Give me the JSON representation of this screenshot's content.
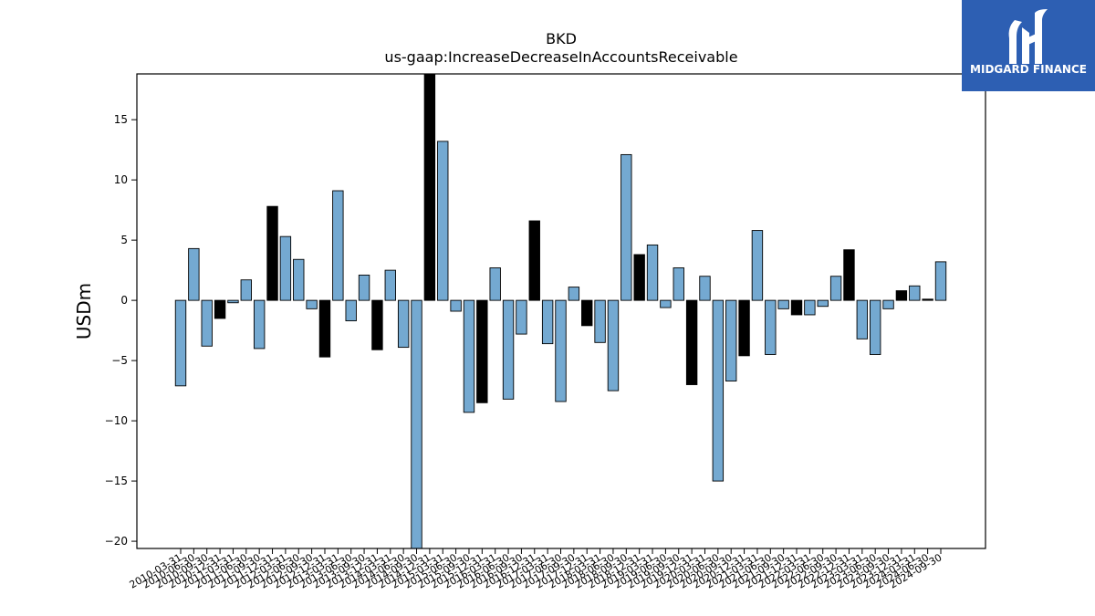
{
  "brand": {
    "name": "MIDGARD FINANCE",
    "background_color": "#2d5fb3",
    "logo_icon": "midgard-m-icon"
  },
  "chart_data": {
    "type": "bar",
    "title": "BKD",
    "subtitle": "us-gaap:IncreaseDecreaseInAccountsReceivable",
    "xlabel": "",
    "ylabel": "USDm",
    "ylim": [
      -20.6,
      18.8
    ],
    "yticks": [
      -20,
      -15,
      -10,
      -5,
      0,
      5,
      10,
      15
    ],
    "grid": false,
    "colors": {
      "default": "#74a9d1",
      "highlight": "#000000",
      "edge": "#000000"
    },
    "categories": [
      "2010-03-31",
      "2010-06-30",
      "2010-09-30",
      "2010-12-31",
      "2011-03-31",
      "2011-06-30",
      "2011-09-30",
      "2011-12-31",
      "2012-03-31",
      "2012-06-30",
      "2012-09-30",
      "2012-12-31",
      "2013-03-31",
      "2013-06-30",
      "2013-09-30",
      "2013-12-31",
      "2014-03-31",
      "2014-06-30",
      "2014-09-30",
      "2014-12-31",
      "2015-03-31",
      "2015-06-30",
      "2015-09-30",
      "2015-12-31",
      "2016-03-31",
      "2016-06-30",
      "2016-09-30",
      "2016-12-31",
      "2017-03-31",
      "2017-06-30",
      "2017-09-30",
      "2017-12-31",
      "2018-03-31",
      "2018-06-30",
      "2018-09-30",
      "2018-12-31",
      "2019-03-31",
      "2019-06-30",
      "2019-09-30",
      "2019-12-31",
      "2020-03-31",
      "2020-06-30",
      "2020-09-30",
      "2020-12-31",
      "2021-03-31",
      "2021-06-30",
      "2021-09-30",
      "2021-12-31",
      "2022-03-31",
      "2022-06-30",
      "2022-09-30",
      "2022-12-31",
      "2023-03-31",
      "2023-06-30",
      "2023-09-30",
      "2023-12-31",
      "2024-03-31",
      "2024-06-30",
      "2024-09-30"
    ],
    "values": [
      -7.1,
      4.3,
      -3.8,
      -1.5,
      -0.2,
      1.7,
      -4.0,
      7.8,
      5.3,
      3.4,
      -0.7,
      -4.7,
      9.1,
      -1.7,
      2.1,
      -4.1,
      2.5,
      -3.9,
      -20.6,
      18.8,
      13.2,
      -0.9,
      -9.3,
      -8.5,
      2.7,
      -8.2,
      -2.8,
      6.6,
      -3.6,
      -8.4,
      1.1,
      -2.1,
      -3.5,
      -7.5,
      12.1,
      3.8,
      4.6,
      -0.6,
      2.7,
      -7.0,
      2.0,
      -15.0,
      -6.7,
      -4.6,
      5.8,
      -4.5,
      -0.7,
      -1.2,
      -1.2,
      -0.5,
      2.0,
      4.2,
      -3.2,
      -4.5,
      -0.7,
      0.8,
      1.2,
      0.1,
      3.2
    ],
    "highlight": [
      false,
      false,
      false,
      true,
      false,
      false,
      false,
      true,
      false,
      false,
      false,
      true,
      false,
      false,
      false,
      true,
      false,
      false,
      false,
      true,
      false,
      false,
      false,
      true,
      false,
      false,
      false,
      true,
      false,
      false,
      false,
      true,
      false,
      false,
      false,
      true,
      false,
      false,
      false,
      true,
      false,
      false,
      false,
      true,
      false,
      false,
      false,
      true,
      false,
      false,
      false,
      true,
      false,
      false,
      false,
      true,
      false,
      true,
      false
    ]
  }
}
